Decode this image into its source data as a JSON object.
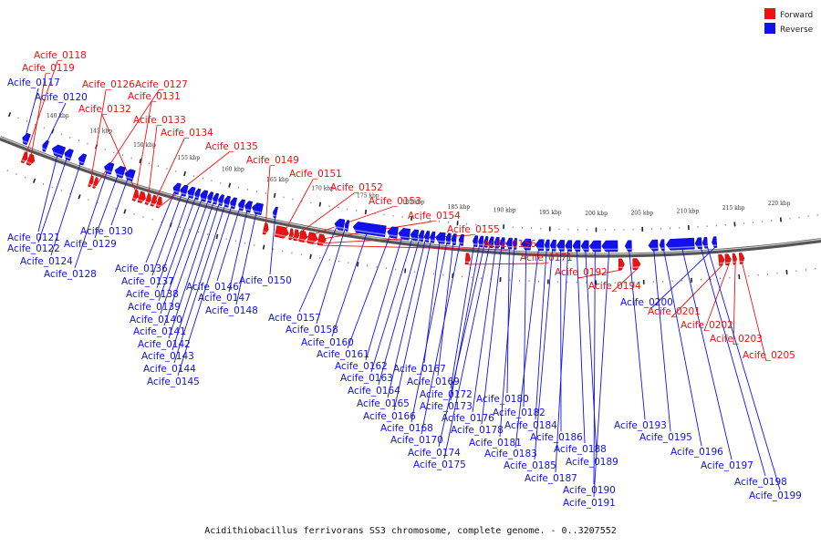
{
  "caption": "Acidithiobacillus ferrivorans SS3 chromosome, complete genome. - 0..3207552",
  "legend": [
    {
      "label": "Forward",
      "color": "#ee1111"
    },
    {
      "label": "Reverse",
      "color": "#1111ee"
    }
  ],
  "colors": {
    "forward": "#ee1111",
    "reverse": "#1111ee",
    "backbone": "#888888"
  },
  "genome": {
    "start_kbp": 135,
    "end_kbp": 224,
    "ticks_kbp": [
      140,
      145,
      150,
      155,
      160,
      165,
      170,
      175,
      180,
      185,
      190,
      195,
      200,
      205,
      210,
      215,
      220
    ]
  },
  "genes": [
    {
      "id": "Acife_0117",
      "strand": "reverse",
      "start_kbp": 137.2,
      "end_kbp": 137.9
    },
    {
      "id": "Acife_0118",
      "strand": "forward",
      "start_kbp": 138.0,
      "end_kbp": 138.5
    },
    {
      "id": "Acife_0119",
      "strand": "forward",
      "start_kbp": 138.6,
      "end_kbp": 139.3
    },
    {
      "id": "Acife_0120",
      "strand": "reverse",
      "start_kbp": 139.5,
      "end_kbp": 140.0
    },
    {
      "id": "Acife_0121",
      "strand": "reverse",
      "start_kbp": 140.6,
      "end_kbp": 141.9
    },
    {
      "id": "Acife_0122",
      "strand": "reverse",
      "start_kbp": 142.0,
      "end_kbp": 142.8
    },
    {
      "id": "Acife_0124",
      "strand": "reverse",
      "start_kbp": 143.6,
      "end_kbp": 144.3
    },
    {
      "id": "Acife_0126",
      "strand": "forward",
      "start_kbp": 145.5,
      "end_kbp": 145.9
    },
    {
      "id": "Acife_0127",
      "strand": "forward",
      "start_kbp": 146.0,
      "end_kbp": 146.4
    },
    {
      "id": "Acife_0128",
      "strand": "reverse",
      "start_kbp": 146.5,
      "end_kbp": 147.4
    },
    {
      "id": "Acife_0129",
      "strand": "reverse",
      "start_kbp": 147.7,
      "end_kbp": 148.7
    },
    {
      "id": "Acife_0130",
      "strand": "reverse",
      "start_kbp": 148.8,
      "end_kbp": 149.8
    },
    {
      "id": "Acife_0131",
      "strand": "forward",
      "start_kbp": 150.4,
      "end_kbp": 150.9
    },
    {
      "id": "Acife_0132",
      "strand": "forward",
      "start_kbp": 151.0,
      "end_kbp": 151.7
    },
    {
      "id": "Acife_0133",
      "strand": "forward",
      "start_kbp": 151.8,
      "end_kbp": 152.3
    },
    {
      "id": "Acife_0134",
      "strand": "forward",
      "start_kbp": 152.4,
      "end_kbp": 152.9
    },
    {
      "id": "Acife_0135",
      "strand": "forward",
      "start_kbp": 153.0,
      "end_kbp": 153.5
    },
    {
      "id": "Acife_0136",
      "strand": "reverse",
      "start_kbp": 154.2,
      "end_kbp": 154.9
    },
    {
      "id": "Acife_0137",
      "strand": "reverse",
      "start_kbp": 155.0,
      "end_kbp": 155.7
    },
    {
      "id": "Acife_0138",
      "strand": "reverse",
      "start_kbp": 155.8,
      "end_kbp": 156.5
    },
    {
      "id": "Acife_0139",
      "strand": "reverse",
      "start_kbp": 156.6,
      "end_kbp": 157.1
    },
    {
      "id": "Acife_0140",
      "strand": "reverse",
      "start_kbp": 157.2,
      "end_kbp": 157.9
    },
    {
      "id": "Acife_0141",
      "strand": "reverse",
      "start_kbp": 158.0,
      "end_kbp": 158.5
    },
    {
      "id": "Acife_0142",
      "strand": "reverse",
      "start_kbp": 158.6,
      "end_kbp": 159.1
    },
    {
      "id": "Acife_0143",
      "strand": "reverse",
      "start_kbp": 159.2,
      "end_kbp": 159.7
    },
    {
      "id": "Acife_0144",
      "strand": "reverse",
      "start_kbp": 159.8,
      "end_kbp": 160.4
    },
    {
      "id": "Acife_0145",
      "strand": "reverse",
      "start_kbp": 160.5,
      "end_kbp": 161.1
    },
    {
      "id": "Acife_0146",
      "strand": "reverse",
      "start_kbp": 161.4,
      "end_kbp": 162.0
    },
    {
      "id": "Acife_0147",
      "strand": "reverse",
      "start_kbp": 162.1,
      "end_kbp": 162.8
    },
    {
      "id": "Acife_0148",
      "strand": "reverse",
      "start_kbp": 162.9,
      "end_kbp": 164.0
    },
    {
      "id": "Acife_0149",
      "strand": "forward",
      "start_kbp": 164.6,
      "end_kbp": 165.1
    },
    {
      "id": "Acife_0150",
      "strand": "reverse",
      "start_kbp": 165.2,
      "end_kbp": 165.6
    },
    {
      "id": "Acife_0151",
      "strand": "forward",
      "start_kbp": 165.9,
      "end_kbp": 167.3
    },
    {
      "id": "Acife_0152",
      "strand": "forward",
      "start_kbp": 167.4,
      "end_kbp": 167.8
    },
    {
      "id": "Acife_0153",
      "strand": "forward",
      "start_kbp": 167.9,
      "end_kbp": 168.4
    },
    {
      "id": "Acife_0154",
      "strand": "forward",
      "start_kbp": 168.5,
      "end_kbp": 169.3
    },
    {
      "id": "Acife_0155",
      "strand": "forward",
      "start_kbp": 169.4,
      "end_kbp": 170.4
    },
    {
      "id": "Acife_0156",
      "strand": "forward",
      "start_kbp": 170.5,
      "end_kbp": 171.3
    },
    {
      "id": "Acife_0157",
      "strand": "reverse",
      "start_kbp": 171.9,
      "end_kbp": 172.9
    },
    {
      "id": "Acife_0158",
      "strand": "reverse",
      "start_kbp": 173.0,
      "end_kbp": 173.4
    },
    {
      "id": "Acife_0160",
      "strand": "reverse",
      "start_kbp": 173.9,
      "end_kbp": 177.4
    },
    {
      "id": "Acife_0161",
      "strand": "reverse",
      "start_kbp": 177.6,
      "end_kbp": 178.7
    },
    {
      "id": "Acife_0162",
      "strand": "reverse",
      "start_kbp": 178.8,
      "end_kbp": 180.0
    },
    {
      "id": "Acife_0163",
      "strand": "reverse",
      "start_kbp": 180.1,
      "end_kbp": 180.9
    },
    {
      "id": "Acife_0164",
      "strand": "reverse",
      "start_kbp": 181.0,
      "end_kbp": 181.5
    },
    {
      "id": "Acife_0165",
      "strand": "reverse",
      "start_kbp": 181.6,
      "end_kbp": 182.1
    },
    {
      "id": "Acife_0166",
      "strand": "reverse",
      "start_kbp": 182.2,
      "end_kbp": 182.7
    },
    {
      "id": "Acife_0167",
      "strand": "reverse",
      "start_kbp": 182.8,
      "end_kbp": 183.8
    },
    {
      "id": "Acife_0168",
      "strand": "reverse",
      "start_kbp": 183.9,
      "end_kbp": 184.4
    },
    {
      "id": "Acife_0169",
      "strand": "reverse",
      "start_kbp": 184.5,
      "end_kbp": 185.0
    },
    {
      "id": "Acife_0170",
      "strand": "reverse",
      "start_kbp": 185.3,
      "end_kbp": 185.8
    },
    {
      "id": "Acife_0171",
      "strand": "forward",
      "start_kbp": 186.2,
      "end_kbp": 186.7
    },
    {
      "id": "Acife_0172",
      "strand": "reverse",
      "start_kbp": 186.8,
      "end_kbp": 187.3
    },
    {
      "id": "Acife_0173",
      "strand": "reverse",
      "start_kbp": 187.4,
      "end_kbp": 187.9
    },
    {
      "id": "Acife_0174",
      "strand": "reverse",
      "start_kbp": 188.0,
      "end_kbp": 188.4
    },
    {
      "id": "Acife_0175",
      "strand": "reverse",
      "start_kbp": 188.5,
      "end_kbp": 189.0
    },
    {
      "id": "Acife_0176",
      "strand": "reverse",
      "start_kbp": 189.1,
      "end_kbp": 189.6
    },
    {
      "id": "Acife_0178",
      "strand": "reverse",
      "start_kbp": 189.7,
      "end_kbp": 190.2
    },
    {
      "id": "Acife_0180",
      "strand": "reverse",
      "start_kbp": 190.4,
      "end_kbp": 191.0
    },
    {
      "id": "Acife_0181",
      "strand": "reverse",
      "start_kbp": 191.1,
      "end_kbp": 191.5
    },
    {
      "id": "Acife_0182",
      "strand": "reverse",
      "start_kbp": 192.0,
      "end_kbp": 193.0
    },
    {
      "id": "Acife_0183",
      "strand": "reverse",
      "start_kbp": 193.5,
      "end_kbp": 194.4
    },
    {
      "id": "Acife_0184",
      "strand": "reverse",
      "start_kbp": 194.5,
      "end_kbp": 195.0
    },
    {
      "id": "Acife_0185",
      "strand": "reverse",
      "start_kbp": 195.1,
      "end_kbp": 195.7
    },
    {
      "id": "Acife_0186",
      "strand": "reverse",
      "start_kbp": 195.8,
      "end_kbp": 196.6
    },
    {
      "id": "Acife_0187",
      "strand": "reverse",
      "start_kbp": 196.7,
      "end_kbp": 197.4
    },
    {
      "id": "Acife_0188",
      "strand": "reverse",
      "start_kbp": 197.5,
      "end_kbp": 198.3
    },
    {
      "id": "Acife_0189",
      "strand": "reverse",
      "start_kbp": 198.4,
      "end_kbp": 199.2
    },
    {
      "id": "Acife_0190",
      "strand": "reverse",
      "start_kbp": 199.3,
      "end_kbp": 200.5
    },
    {
      "id": "Acife_0191",
      "strand": "reverse",
      "start_kbp": 200.6,
      "end_kbp": 202.3
    },
    {
      "id": "Acife_0192",
      "strand": "forward",
      "start_kbp": 202.4,
      "end_kbp": 203.0
    },
    {
      "id": "Acife_0193",
      "strand": "reverse",
      "start_kbp": 203.1,
      "end_kbp": 203.8
    },
    {
      "id": "Acife_0194",
      "strand": "forward",
      "start_kbp": 203.9,
      "end_kbp": 204.7
    },
    {
      "id": "Acife_0195",
      "strand": "reverse",
      "start_kbp": 205.6,
      "end_kbp": 206.6
    },
    {
      "id": "Acife_0196",
      "strand": "reverse",
      "start_kbp": 206.8,
      "end_kbp": 207.3
    },
    {
      "id": "Acife_0197",
      "strand": "reverse",
      "start_kbp": 207.5,
      "end_kbp": 210.5
    },
    {
      "id": "Acife_0198",
      "strand": "reverse",
      "start_kbp": 210.6,
      "end_kbp": 211.3
    },
    {
      "id": "Acife_0199",
      "strand": "reverse",
      "start_kbp": 211.4,
      "end_kbp": 211.9
    },
    {
      "id": "Acife_0200",
      "strand": "reverse",
      "start_kbp": 212.4,
      "end_kbp": 212.9
    },
    {
      "id": "Acife_0201",
      "strand": "forward",
      "start_kbp": 213.0,
      "end_kbp": 213.6
    },
    {
      "id": "Acife_0202",
      "strand": "forward",
      "start_kbp": 213.7,
      "end_kbp": 214.3
    },
    {
      "id": "Acife_0203",
      "strand": "forward",
      "start_kbp": 214.5,
      "end_kbp": 214.9
    },
    {
      "id": "Acife_0205",
      "strand": "forward",
      "start_kbp": 215.2,
      "end_kbp": 215.7
    }
  ]
}
